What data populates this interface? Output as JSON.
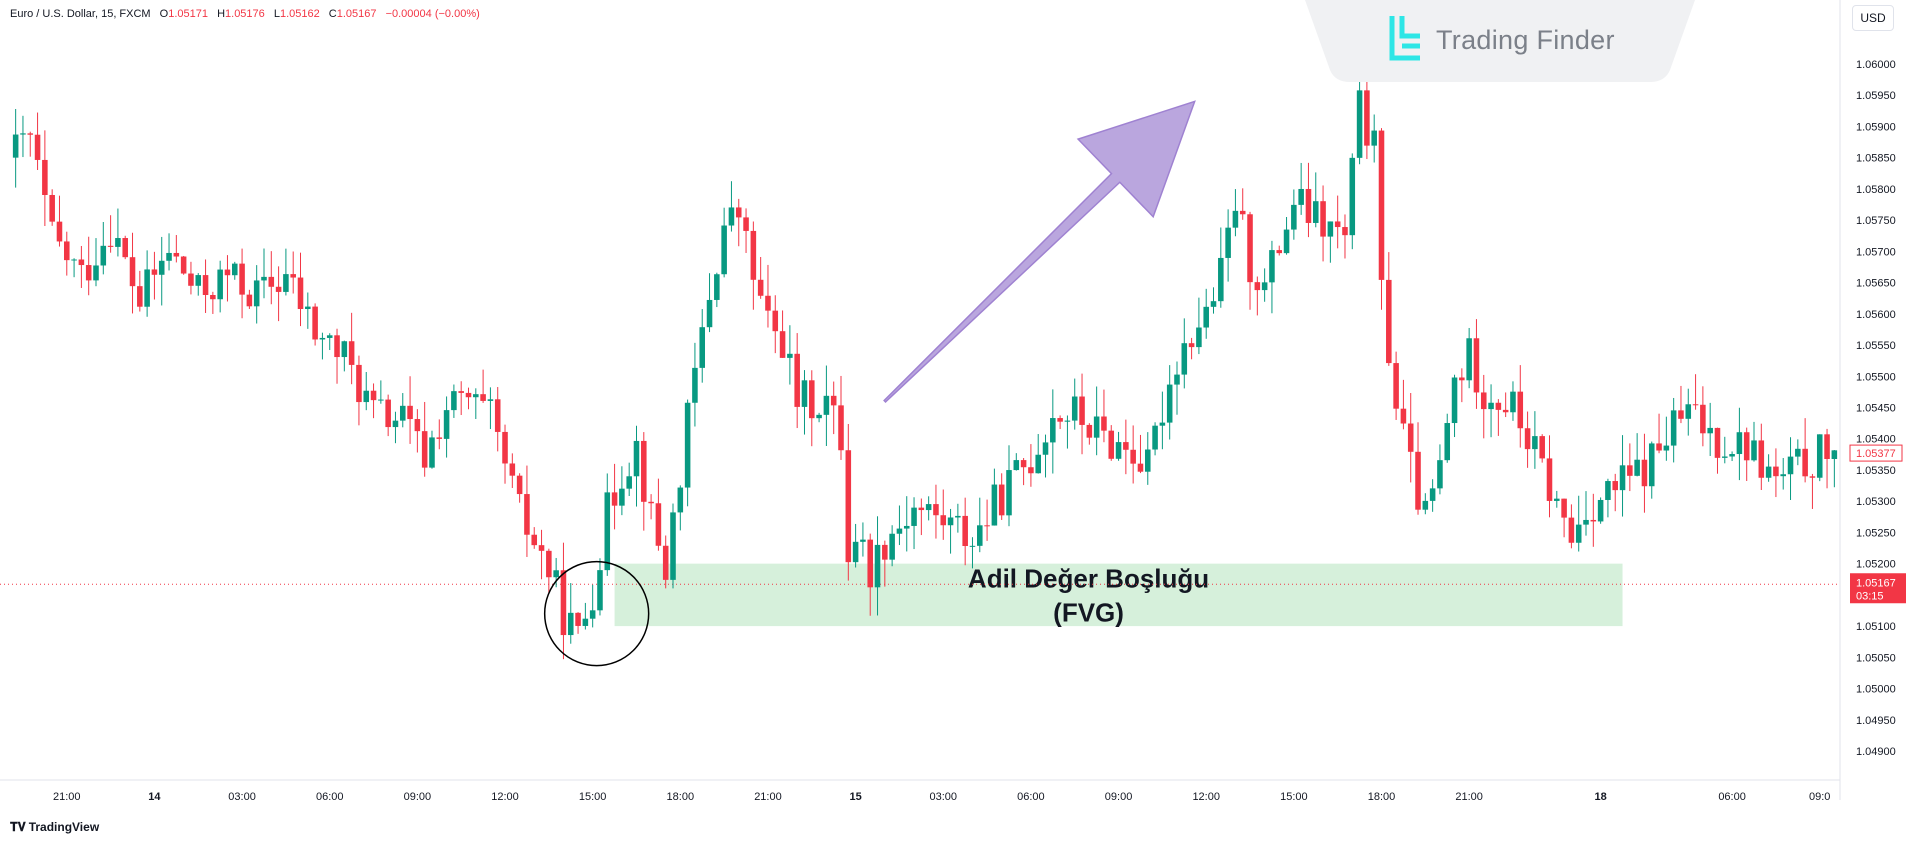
{
  "header": {
    "symbol": "Euro / U.S. Dollar, 15, FXCM",
    "o_label": "O",
    "o_value": "1.05171",
    "h_label": "H",
    "h_value": "1.05176",
    "l_label": "L",
    "l_value": "1.05162",
    "c_label": "C",
    "c_value": "1.05167",
    "change": "−0.00004 (−0.00%)"
  },
  "logo": {
    "text": "Trading Finder",
    "icon": "trading-finder-logo-icon",
    "color": "#2ee6e6"
  },
  "currency_button": "USD",
  "branding": {
    "text": "TradingView",
    "icon": "tradingview-logo-icon"
  },
  "chart_data": {
    "type": "candlestick",
    "symbol": "EURUSD",
    "timeframe": "15",
    "ylim": [
      1.0486,
      1.0608
    ],
    "y_ticks": [
      1.06,
      1.0595,
      1.059,
      1.0585,
      1.058,
      1.0575,
      1.057,
      1.0565,
      1.056,
      1.0555,
      1.055,
      1.0545,
      1.054,
      1.0535,
      1.053,
      1.0525,
      1.052,
      1.0515,
      1.051,
      1.0505,
      1.05,
      1.0495,
      1.049
    ],
    "y_tick_labels": [
      "1.06000",
      "1.05950",
      "1.05900",
      "1.05850",
      "1.05800",
      "1.05750",
      "1.05700",
      "1.05650",
      "1.05600",
      "1.05550",
      "1.05500",
      "1.05450",
      "1.05400",
      "1.05350",
      "1.05300",
      "1.05250",
      "1.05200",
      "1.05150",
      "1.05100",
      "1.05050",
      "1.05000",
      "1.04950",
      "1.04900"
    ],
    "x_ticks": [
      {
        "label": "21:00",
        "index": 7
      },
      {
        "label": "14",
        "index": 19,
        "bold": true
      },
      {
        "label": "03:00",
        "index": 31
      },
      {
        "label": "06:00",
        "index": 43
      },
      {
        "label": "09:00",
        "index": 55
      },
      {
        "label": "12:00",
        "index": 67
      },
      {
        "label": "15:00",
        "index": 79
      },
      {
        "label": "18:00",
        "index": 91
      },
      {
        "label": "21:00",
        "index": 103
      },
      {
        "label": "15",
        "index": 115,
        "bold": true
      },
      {
        "label": "03:00",
        "index": 127
      },
      {
        "label": "06:00",
        "index": 139
      },
      {
        "label": "09:00",
        "index": 151
      },
      {
        "label": "12:00",
        "index": 163
      },
      {
        "label": "15:00",
        "index": 175
      },
      {
        "label": "18:00",
        "index": 187
      },
      {
        "label": "21:00",
        "index": 199
      },
      {
        "label": "18",
        "index": 217,
        "bold": true
      },
      {
        "label": "06:00",
        "index": 235
      },
      {
        "label": "09:0",
        "index": 247
      }
    ],
    "bars": 250,
    "price_path": [
      [
        0,
        1.0585
      ],
      [
        3,
        1.0588
      ],
      [
        6,
        1.0572
      ],
      [
        10,
        1.0566
      ],
      [
        14,
        1.0574
      ],
      [
        18,
        1.0562
      ],
      [
        22,
        1.057
      ],
      [
        26,
        1.0563
      ],
      [
        30,
        1.0566
      ],
      [
        34,
        1.0563
      ],
      [
        38,
        1.0566
      ],
      [
        42,
        1.0557
      ],
      [
        46,
        1.0553
      ],
      [
        50,
        1.0544
      ],
      [
        54,
        1.0543
      ],
      [
        57,
        1.0537
      ],
      [
        60,
        1.0545
      ],
      [
        63,
        1.0546
      ],
      [
        66,
        1.0543
      ],
      [
        70,
        1.0528
      ],
      [
        74,
        1.0519
      ],
      [
        76,
        1.0512
      ],
      [
        78,
        1.0508
      ],
      [
        80,
        1.0516
      ],
      [
        82,
        1.0528
      ],
      [
        84,
        1.0535
      ],
      [
        86,
        1.0539
      ],
      [
        88,
        1.0527
      ],
      [
        90,
        1.0519
      ],
      [
        92,
        1.0535
      ],
      [
        94,
        1.055
      ],
      [
        96,
        1.0563
      ],
      [
        98,
        1.0574
      ],
      [
        100,
        1.0576
      ],
      [
        102,
        1.0566
      ],
      [
        104,
        1.0558
      ],
      [
        106,
        1.0556
      ],
      [
        108,
        1.0546
      ],
      [
        112,
        1.0546
      ],
      [
        114,
        1.054
      ],
      [
        115,
        1.0522
      ],
      [
        116,
        1.0525
      ],
      [
        118,
        1.0519
      ],
      [
        120,
        1.0524
      ],
      [
        124,
        1.0529
      ],
      [
        128,
        1.0527
      ],
      [
        132,
        1.0524
      ],
      [
        136,
        1.0531
      ],
      [
        140,
        1.0537
      ],
      [
        143,
        1.0544
      ],
      [
        146,
        1.0544
      ],
      [
        150,
        1.054
      ],
      [
        154,
        1.0538
      ],
      [
        156,
        1.0535
      ],
      [
        158,
        1.0545
      ],
      [
        160,
        1.0553
      ],
      [
        162,
        1.0557
      ],
      [
        164,
        1.056
      ],
      [
        166,
        1.0566
      ],
      [
        168,
        1.0578
      ],
      [
        170,
        1.0568
      ],
      [
        172,
        1.0564
      ],
      [
        176,
        1.0578
      ],
      [
        180,
        1.0574
      ],
      [
        183,
        1.0572
      ],
      [
        185,
        1.0593
      ],
      [
        187,
        1.0586
      ],
      [
        188,
        1.0563
      ],
      [
        190,
        1.0546
      ],
      [
        192,
        1.0535
      ],
      [
        194,
        1.0527
      ],
      [
        196,
        1.0535
      ],
      [
        198,
        1.0549
      ],
      [
        200,
        1.0553
      ],
      [
        202,
        1.0548
      ],
      [
        206,
        1.0545
      ],
      [
        210,
        1.0535
      ],
      [
        212,
        1.0529
      ],
      [
        214,
        1.0524
      ],
      [
        216,
        1.0529
      ],
      [
        220,
        1.0532
      ],
      [
        224,
        1.0535
      ],
      [
        228,
        1.0542
      ],
      [
        230,
        1.0544
      ],
      [
        234,
        1.054
      ],
      [
        238,
        1.0539
      ],
      [
        242,
        1.0533
      ],
      [
        246,
        1.0536
      ],
      [
        249,
        1.0538
      ]
    ],
    "up_color": "#089981",
    "down_color": "#f23645",
    "fvg_zone": {
      "label_line1": "Adil Değer Boşluğu",
      "label_line2": "(FVG)",
      "y_top": 1.052,
      "y_bottom": 1.051,
      "x_start_index": 82,
      "x_end_index": 220,
      "color": "#c8ebcf"
    },
    "circle_marker": {
      "center_index": 79,
      "center_y": 1.0512
    },
    "arrow": {
      "color": "#b39ddb",
      "from_index": 119,
      "to_index": 158,
      "from_y": 1.0546,
      "to_y": 1.0594
    },
    "current_price": {
      "value": "1.05167",
      "countdown": "03:15",
      "y": 1.05167,
      "color": "#f23645"
    },
    "last_close_marker": {
      "value": "1.05377",
      "y": 1.05377
    }
  }
}
